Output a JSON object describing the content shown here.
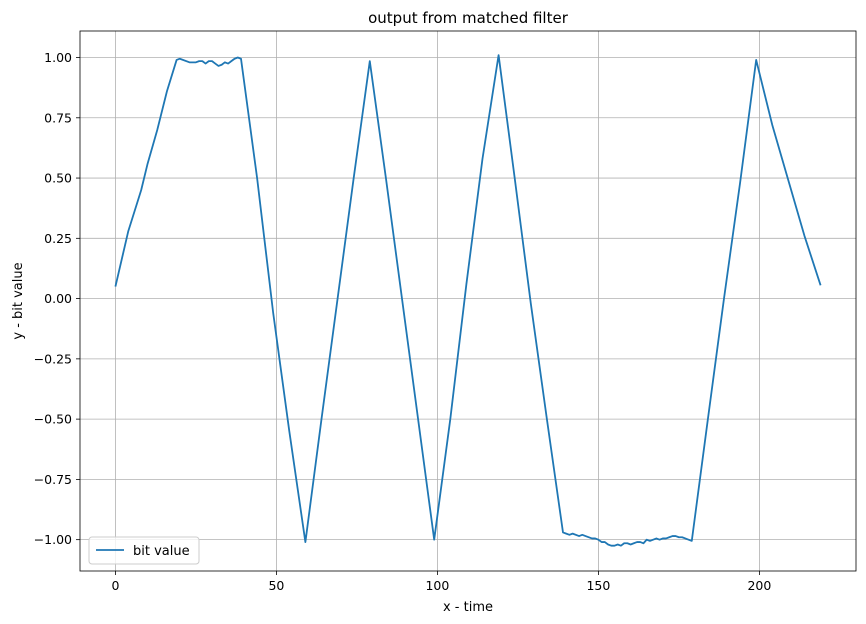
{
  "chart_data": {
    "type": "line",
    "title": "output from matched filter",
    "xlabel": "x - time",
    "ylabel": "y - bit value",
    "xlim": [
      -11,
      230
    ],
    "ylim": [
      -1.13,
      1.11
    ],
    "xticks": [
      0,
      50,
      100,
      150,
      200
    ],
    "xtick_labels": [
      "0",
      "50",
      "100",
      "150",
      "200"
    ],
    "yticks": [
      -1.0,
      -0.75,
      -0.5,
      -0.25,
      0.0,
      0.25,
      0.5,
      0.75,
      1.0
    ],
    "ytick_labels": [
      "−1.00",
      "−0.75",
      "−0.50",
      "−0.25",
      "0.00",
      "0.25",
      "0.50",
      "0.75",
      "1.00"
    ],
    "grid": true,
    "legend_position": "lower-left",
    "color": "#1f77b4",
    "series": [
      {
        "name": "bit value",
        "x": [
          0,
          4,
          8,
          10,
          13,
          16,
          19,
          20,
          23,
          25,
          26,
          27,
          28,
          29,
          30,
          31,
          32,
          33,
          34,
          35,
          36,
          37,
          38,
          39,
          44,
          49,
          54,
          59,
          64,
          69,
          74,
          79,
          84,
          89,
          94,
          99,
          104,
          109,
          114,
          119,
          124,
          129,
          134,
          139,
          140,
          141,
          142,
          144,
          145,
          146,
          148,
          149,
          150,
          151,
          152,
          153,
          154,
          155,
          156,
          157,
          158,
          159,
          160,
          161,
          162,
          163,
          164,
          165,
          166,
          167,
          168,
          169,
          170,
          171,
          172,
          173,
          174,
          175,
          176,
          177,
          178,
          179,
          184,
          189,
          194,
          199,
          204,
          209,
          214,
          219
        ],
        "y": [
          0.05,
          0.28,
          0.45,
          0.56,
          0.7,
          0.86,
          0.99,
          0.995,
          0.98,
          0.98,
          0.985,
          0.985,
          0.975,
          0.985,
          0.985,
          0.975,
          0.965,
          0.97,
          0.98,
          0.975,
          0.985,
          0.995,
          1.0,
          0.995,
          0.5,
          -0.06,
          -0.55,
          -1.01,
          -0.5,
          0.0,
          0.5,
          0.985,
          0.5,
          0.0,
          -0.5,
          -1.0,
          -0.5,
          0.06,
          0.58,
          1.01,
          0.5,
          -0.02,
          -0.5,
          -0.97,
          -0.975,
          -0.98,
          -0.975,
          -0.985,
          -0.98,
          -0.985,
          -0.995,
          -0.995,
          -1.0,
          -1.01,
          -1.01,
          -1.02,
          -1.025,
          -1.025,
          -1.02,
          -1.025,
          -1.015,
          -1.015,
          -1.02,
          -1.015,
          -1.01,
          -1.01,
          -1.015,
          -1.0,
          -1.005,
          -1.0,
          -0.995,
          -1.0,
          -0.995,
          -0.995,
          -0.99,
          -0.985,
          -0.985,
          -0.99,
          -0.99,
          -0.995,
          -1.0,
          -1.005,
          -0.5,
          0.0,
          0.48,
          0.99,
          0.72,
          0.49,
          0.26,
          0.055
        ]
      }
    ]
  }
}
